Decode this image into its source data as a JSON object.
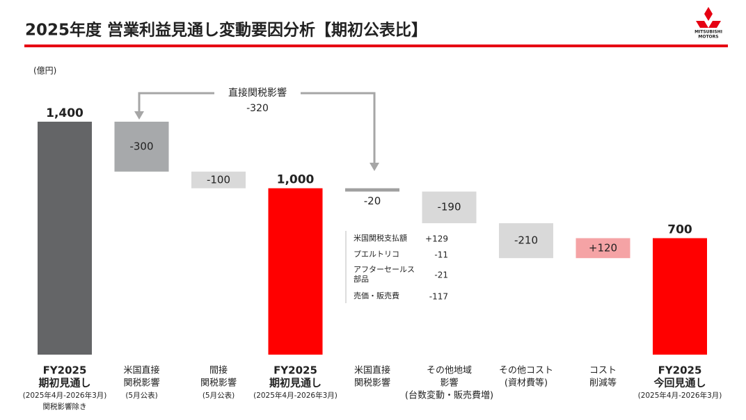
{
  "chart_data": {
    "type": "waterfall",
    "title": "2025年度 営業利益見通し変動要因分析【期初公表比】",
    "unit": "(億円)",
    "logo": [
      "MITSUBISHI",
      "MOTORS"
    ],
    "categories": [
      [
        "FY2025",
        "期初見通し"
      ],
      [
        "米国直接",
        "関税影響"
      ],
      [
        "間接",
        "関税影響"
      ],
      [
        "FY2025",
        "期初見通し"
      ],
      [
        "米国直接",
        "関税影響"
      ],
      [
        "その他地域",
        "影響",
        "(台数変動・販売費増)"
      ],
      [
        "その他コスト",
        "(資材費等)"
      ],
      [
        "コスト",
        "削減等"
      ],
      [
        "FY2025",
        "今回見通し"
      ]
    ],
    "category_notes": [
      [
        "(2025年4月-2026年3月)",
        "関税影響除き"
      ],
      [
        "(5月公表)"
      ],
      [
        "(5月公表)"
      ],
      [
        "(2025年4月-2026年3月)"
      ],
      [],
      [],
      [],
      [],
      [
        "(2025年4月-2026年3月)"
      ]
    ],
    "values": [
      1400,
      -300,
      -100,
      1000,
      -20,
      -190,
      -210,
      120,
      700
    ],
    "value_labels": [
      "1,400",
      "-300",
      "-100",
      "1,000",
      "-20",
      "-190",
      "-210",
      "+120",
      "700"
    ],
    "colors": [
      "#646567",
      "#a7a9ab",
      "#d9d9d9",
      "#ff0000",
      "#a0a0a0",
      "#d9d9d9",
      "#d9d9d9",
      "#f5a3a5",
      "#ff0000"
    ],
    "annotation": {
      "label": "直接関税影響",
      "value": -320
    },
    "breakdown": {
      "items": [
        [
          "米国関税支払額"
        ],
        [
          "プエルトリコ"
        ],
        [
          "アフターセールス",
          "部品"
        ],
        [
          "売価・販売費"
        ]
      ],
      "values": [
        129,
        -11,
        -21,
        -117
      ],
      "value_labels": [
        "+129",
        "-11",
        "-21",
        "-117"
      ]
    }
  }
}
